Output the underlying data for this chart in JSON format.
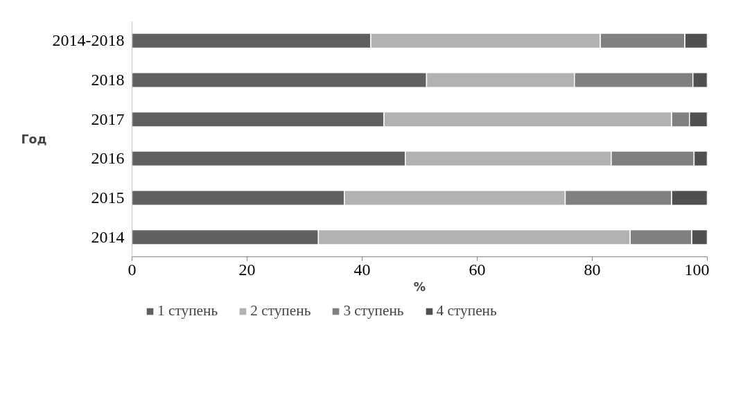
{
  "chart_data": {
    "type": "bar",
    "orientation": "horizontal",
    "stacked": true,
    "categories": [
      "2014-2018",
      "2018",
      "2017",
      "2016",
      "2015",
      "2014"
    ],
    "series": [
      {
        "name": "1 ступень",
        "color": "#606060",
        "values": [
          41.5,
          51.2,
          43.8,
          47.5,
          36.9,
          32.4
        ]
      },
      {
        "name": "2 ступень",
        "color": "#b2b2b2",
        "values": [
          39.9,
          25.7,
          50.0,
          35.8,
          38.4,
          54.2
        ]
      },
      {
        "name": "3 ступень",
        "color": "#808080",
        "values": [
          14.7,
          20.6,
          3.1,
          14.4,
          18.5,
          10.7
        ]
      },
      {
        "name": "4 ступень",
        "color": "#505050",
        "values": [
          3.9,
          2.5,
          3.1,
          2.3,
          6.2,
          2.7
        ]
      }
    ],
    "xlim": [
      0,
      100
    ],
    "xticks": [
      0,
      20,
      40,
      60,
      80,
      100
    ],
    "xlabel": "%",
    "ylabel": "Год",
    "legend": "bottom",
    "grid": false
  }
}
